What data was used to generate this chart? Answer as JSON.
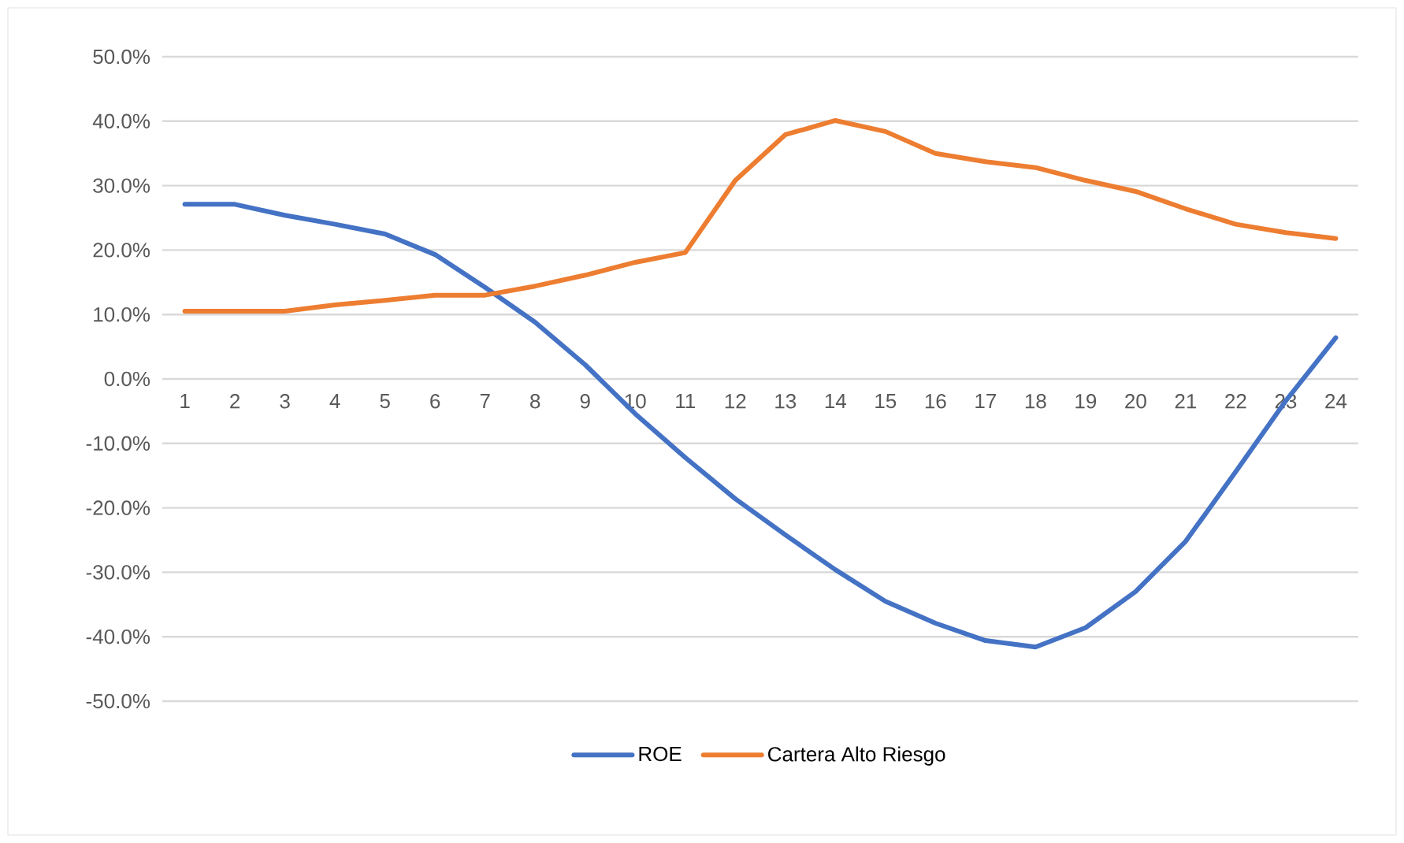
{
  "chart_data": {
    "type": "line",
    "categories": [
      "1",
      "2",
      "3",
      "4",
      "5",
      "6",
      "7",
      "8",
      "9",
      "10",
      "11",
      "12",
      "13",
      "14",
      "15",
      "16",
      "17",
      "18",
      "19",
      "20",
      "21",
      "22",
      "23",
      "24"
    ],
    "series": [
      {
        "name": "ROE",
        "color": "#4472c4",
        "values": [
          27.1,
          27.1,
          25.4,
          24.0,
          22.5,
          19.3,
          14.2,
          8.8,
          2.2,
          -5.4,
          -12.2,
          -18.6,
          -24.2,
          -29.6,
          -34.5,
          -37.9,
          -40.6,
          -41.6,
          -38.6,
          -33.0,
          -25.2,
          -14.4,
          -3.4,
          6.4
        ]
      },
      {
        "name": "Cartera Alto Riesgo",
        "color": "#ed7d31",
        "values": [
          10.5,
          10.5,
          10.5,
          11.5,
          12.2,
          13.0,
          13.0,
          14.4,
          16.1,
          18.1,
          19.6,
          30.8,
          37.9,
          40.1,
          38.4,
          35.0,
          33.7,
          32.8,
          30.8,
          29.1,
          26.4,
          24.0,
          22.7,
          21.8
        ]
      }
    ],
    "ylim": [
      -50,
      50
    ],
    "yticks": [
      {
        "value": -50,
        "label": "-50.0%"
      },
      {
        "value": -40,
        "label": "-40.0%"
      },
      {
        "value": -30,
        "label": "-30.0%"
      },
      {
        "value": -20,
        "label": "-20.0%"
      },
      {
        "value": -10,
        "label": "-10.0%"
      },
      {
        "value": 0,
        "label": "0.0%"
      },
      {
        "value": 10,
        "label": "10.0%"
      },
      {
        "value": 20,
        "label": "20.0%"
      },
      {
        "value": 30,
        "label": "30.0%"
      },
      {
        "value": 40,
        "label": "40.0%"
      },
      {
        "value": 50,
        "label": "50.0%"
      }
    ],
    "grid": "y",
    "legend": "bottom",
    "marker": "none",
    "line_style": "solid"
  }
}
